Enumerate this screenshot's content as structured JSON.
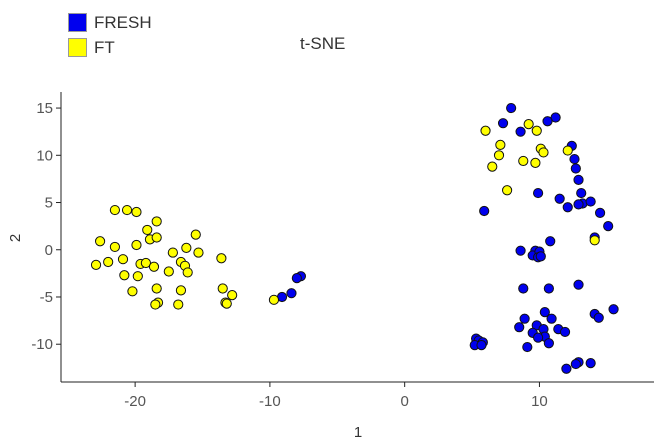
{
  "chart_data": {
    "type": "scatter",
    "title": "t-SNE",
    "xlabel": "1",
    "ylabel": "2",
    "xlim": [
      -25.5,
      18.5
    ],
    "ylim": [
      -14,
      16.7
    ],
    "xticks": [
      -20,
      -10,
      0,
      10
    ],
    "yticks": [
      -10,
      -5,
      0,
      5,
      10,
      15
    ],
    "grid": false,
    "legend_position": "top-left",
    "series": [
      {
        "name": "FRESH",
        "color": "#0000ee",
        "points": [
          [
            7.9,
            15.0
          ],
          [
            11.2,
            14.0
          ],
          [
            10.6,
            13.6
          ],
          [
            7.3,
            13.4
          ],
          [
            8.6,
            12.5
          ],
          [
            12.4,
            11.0
          ],
          [
            12.6,
            9.6
          ],
          [
            12.7,
            8.6
          ],
          [
            12.9,
            7.4
          ],
          [
            13.1,
            6.0
          ],
          [
            9.9,
            6.0
          ],
          [
            11.5,
            5.4
          ],
          [
            13.2,
            4.9
          ],
          [
            12.9,
            4.8
          ],
          [
            13.8,
            5.1
          ],
          [
            12.1,
            4.5
          ],
          [
            5.9,
            4.1
          ],
          [
            14.5,
            3.9
          ],
          [
            15.1,
            2.5
          ],
          [
            14.1,
            1.3
          ],
          [
            10.8,
            0.9
          ],
          [
            8.6,
            -0.1
          ],
          [
            9.7,
            -0.1
          ],
          [
            9.5,
            -0.6
          ],
          [
            10.0,
            -0.2
          ],
          [
            9.9,
            -0.8
          ],
          [
            10.1,
            -0.7
          ],
          [
            8.8,
            -4.1
          ],
          [
            10.7,
            -4.1
          ],
          [
            12.9,
            -3.7
          ],
          [
            -7.7,
            -2.8
          ],
          [
            -8.0,
            -3.0
          ],
          [
            -8.4,
            -4.6
          ],
          [
            -9.1,
            -5.0
          ],
          [
            10.4,
            -6.6
          ],
          [
            10.9,
            -7.3
          ],
          [
            8.9,
            -7.3
          ],
          [
            14.1,
            -6.8
          ],
          [
            14.4,
            -7.2
          ],
          [
            15.5,
            -6.3
          ],
          [
            8.5,
            -8.2
          ],
          [
            9.8,
            -8.0
          ],
          [
            10.3,
            -8.4
          ],
          [
            11.4,
            -8.4
          ],
          [
            9.5,
            -8.8
          ],
          [
            11.9,
            -8.7
          ],
          [
            10.4,
            -9.2
          ],
          [
            9.9,
            -9.3
          ],
          [
            10.7,
            -9.9
          ],
          [
            5.3,
            -9.4
          ],
          [
            5.5,
            -9.6
          ],
          [
            5.8,
            -9.8
          ],
          [
            5.2,
            -10.1
          ],
          [
            5.7,
            -10.1
          ],
          [
            9.1,
            -10.3
          ],
          [
            12.9,
            -11.9
          ],
          [
            12.7,
            -12.1
          ],
          [
            13.8,
            -12.0
          ],
          [
            12.0,
            -12.6
          ]
        ]
      },
      {
        "name": "FT",
        "color": "#ffff00",
        "points": [
          [
            9.2,
            13.3
          ],
          [
            6.0,
            12.6
          ],
          [
            9.8,
            12.6
          ],
          [
            7.1,
            11.1
          ],
          [
            7.0,
            10.0
          ],
          [
            10.1,
            10.7
          ],
          [
            10.3,
            10.3
          ],
          [
            12.1,
            10.5
          ],
          [
            8.8,
            9.4
          ],
          [
            9.7,
            9.2
          ],
          [
            6.5,
            8.8
          ],
          [
            7.6,
            6.3
          ],
          [
            14.1,
            1.0
          ],
          [
            -21.5,
            4.2
          ],
          [
            -20.6,
            4.2
          ],
          [
            -19.9,
            4.0
          ],
          [
            -18.4,
            3.0
          ],
          [
            -19.1,
            2.1
          ],
          [
            -18.9,
            1.1
          ],
          [
            -18.4,
            1.3
          ],
          [
            -15.5,
            1.6
          ],
          [
            -22.6,
            0.9
          ],
          [
            -21.5,
            0.3
          ],
          [
            -19.9,
            0.5
          ],
          [
            -16.2,
            0.2
          ],
          [
            -17.2,
            -0.3
          ],
          [
            -15.3,
            -0.3
          ],
          [
            -13.6,
            -0.9
          ],
          [
            -20.9,
            -1.0
          ],
          [
            -22.0,
            -1.3
          ],
          [
            -22.9,
            -1.6
          ],
          [
            -19.6,
            -1.5
          ],
          [
            -19.2,
            -1.4
          ],
          [
            -18.6,
            -1.8
          ],
          [
            -16.6,
            -1.3
          ],
          [
            -16.3,
            -1.7
          ],
          [
            -17.5,
            -2.3
          ],
          [
            -16.1,
            -2.4
          ],
          [
            -20.8,
            -2.7
          ],
          [
            -19.8,
            -2.8
          ],
          [
            -18.4,
            -4.1
          ],
          [
            -16.6,
            -4.3
          ],
          [
            -13.5,
            -4.1
          ],
          [
            -12.8,
            -4.8
          ],
          [
            -20.2,
            -4.4
          ],
          [
            -18.3,
            -5.6
          ],
          [
            -18.5,
            -5.8
          ],
          [
            -16.8,
            -5.8
          ],
          [
            -13.3,
            -5.6
          ],
          [
            -13.2,
            -5.7
          ],
          [
            -9.7,
            -5.3
          ]
        ]
      }
    ]
  }
}
